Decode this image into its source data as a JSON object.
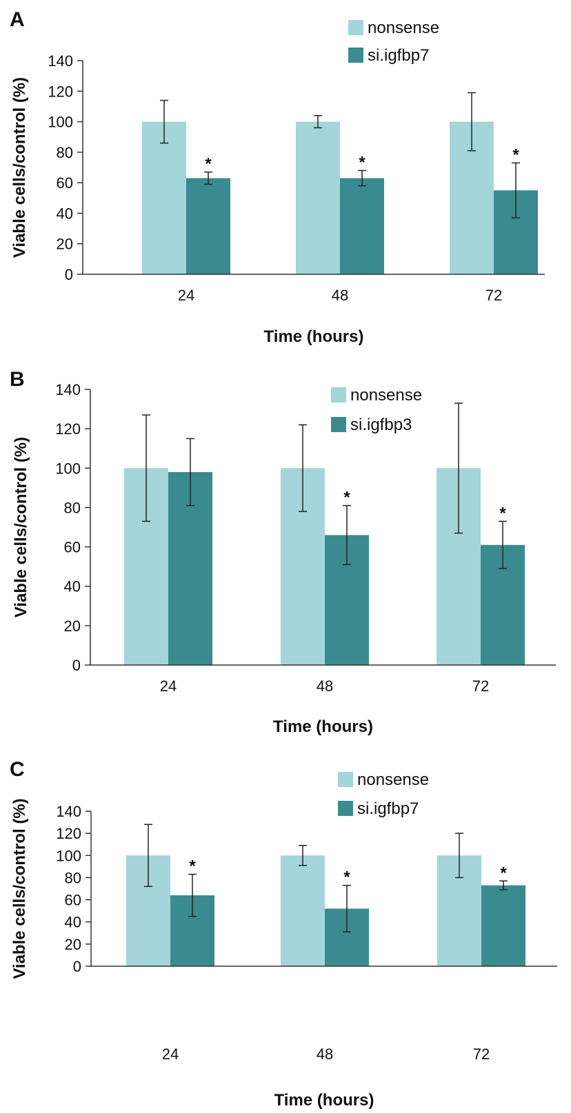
{
  "colors": {
    "nonsense": "#a3d5db",
    "knockdown": "#3a8b8f",
    "axis": "#333333",
    "errorbar": "#222222"
  },
  "chart_data": [
    {
      "type": "bar",
      "panel": "A",
      "categories": [
        "24",
        "48",
        "72"
      ],
      "xlabel": "Time (hours)",
      "ylabel": "Viable cells/control (%)",
      "ylim": [
        0,
        140
      ],
      "yticks": [
        "0",
        "20",
        "40",
        "60",
        "80",
        "100",
        "120",
        "140"
      ],
      "legend_position": "top-right",
      "grid": false,
      "series": [
        {
          "name": "nonsense",
          "values": [
            100,
            100,
            100
          ],
          "errors": [
            14,
            4,
            19
          ]
        },
        {
          "name": "si.igfbp7",
          "values": [
            63,
            63,
            55
          ],
          "errors": [
            4,
            5,
            18
          ],
          "significance": [
            "*",
            "*",
            "*"
          ]
        }
      ]
    },
    {
      "type": "bar",
      "panel": "B",
      "categories": [
        "24",
        "48",
        "72"
      ],
      "xlabel": "Time (hours)",
      "ylabel": "Viable cells/control (%)",
      "ylim": [
        0,
        140
      ],
      "yticks": [
        "0",
        "20",
        "40",
        "60",
        "80",
        "100",
        "120",
        "140"
      ],
      "legend_position": "top-right",
      "grid": false,
      "series": [
        {
          "name": "nonsense",
          "values": [
            100,
            100,
            100
          ],
          "errors": [
            27,
            22,
            33
          ]
        },
        {
          "name": "si.igfbp3",
          "values": [
            98,
            66,
            61
          ],
          "errors": [
            17,
            15,
            12
          ],
          "significance": [
            "",
            "*",
            "*"
          ]
        }
      ]
    },
    {
      "type": "bar",
      "panel": "C",
      "categories": [
        "24",
        "48",
        "72"
      ],
      "xlabel": "Time (hours)",
      "ylabel": "Viable cells/control (%)",
      "ylim": [
        0,
        140
      ],
      "yticks": [
        "0",
        "20",
        "40",
        "60",
        "80",
        "100",
        "120",
        "140"
      ],
      "legend_position": "top-right",
      "grid": false,
      "series": [
        {
          "name": "nonsense",
          "values": [
            100,
            100,
            100
          ],
          "errors": [
            28,
            9,
            20
          ]
        },
        {
          "name": "si.igfbp7",
          "values": [
            64,
            52,
            73
          ],
          "errors": [
            19,
            21,
            4
          ],
          "significance": [
            "*",
            "*",
            "*"
          ]
        }
      ]
    }
  ]
}
